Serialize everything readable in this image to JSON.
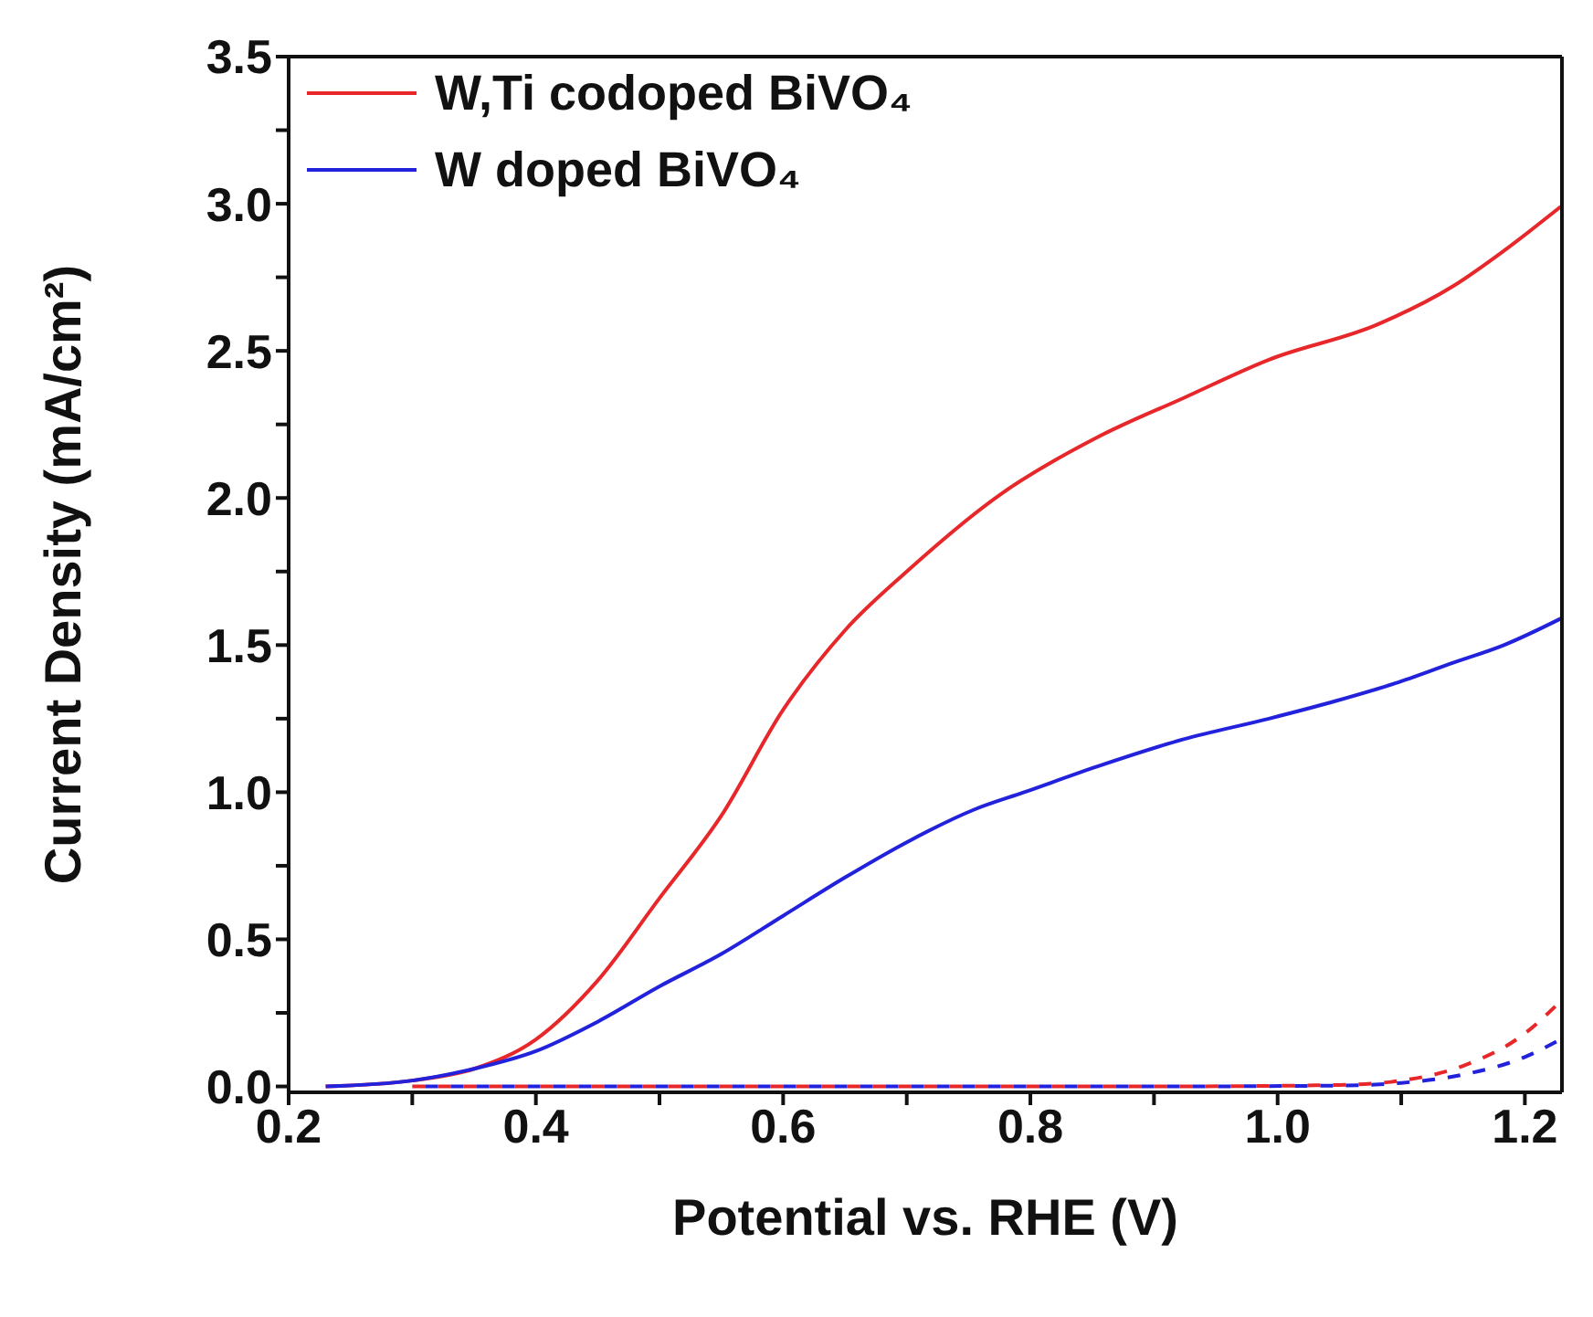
{
  "chart_data": {
    "type": "line",
    "xlabel": "Potential vs. RHE (V)",
    "ylabel": "Current Density (mA/cm²)",
    "xlim": [
      0.2,
      1.23
    ],
    "xticks": [
      0.2,
      {
        "value": 0.3,
        "label": null
      },
      0.4,
      {
        "value": 0.5,
        "label": null
      },
      0.6,
      {
        "value": 0.7,
        "label": null
      },
      0.8,
      {
        "value": 0.9,
        "label": null
      },
      {
        "value": 1.0,
        "label": "1.0"
      },
      {
        "value": 1.1,
        "label": null
      },
      1.2
    ],
    "ylim": [
      -0.02,
      3.5
    ],
    "yticks": [
      {
        "value": 0,
        "label": "0.0"
      },
      {
        "value": 0.25,
        "label": null
      },
      0.5,
      {
        "value": 0.75,
        "label": null
      },
      {
        "value": 1,
        "label": "1.0"
      },
      {
        "value": 1.25,
        "label": null
      },
      1.5,
      {
        "value": 1.75,
        "label": null
      },
      {
        "value": 2,
        "label": "2.0"
      },
      {
        "value": 2.25,
        "label": null
      },
      2.5,
      {
        "value": 2.75,
        "label": null
      },
      {
        "value": 3,
        "label": "3.0"
      },
      {
        "value": 3.25,
        "label": null
      },
      3.5
    ],
    "grid": false,
    "legend": "top left",
    "marker": "none",
    "series": [
      {
        "name": "W,Ti codoped BiVO₄",
        "color": "#e8272a",
        "line_style": "solid",
        "x": [
          0.23,
          0.3,
          0.35,
          0.4,
          0.45,
          0.5,
          0.55,
          0.6,
          0.65,
          0.7,
          0.775,
          0.856,
          0.924,
          0.993,
          1.081,
          1.142,
          1.183,
          1.229
        ],
        "values": [
          0,
          0.02,
          0.06,
          0.16,
          0.36,
          0.64,
          0.92,
          1.28,
          1.55,
          1.75,
          2.01,
          2.21,
          2.34,
          2.47,
          2.59,
          2.72,
          2.84,
          2.99
        ]
      },
      {
        "name": "W doped BiVO₄",
        "color": "#2222dd",
        "line_style": "solid",
        "x": [
          0.23,
          0.3,
          0.35,
          0.4,
          0.45,
          0.5,
          0.55,
          0.6,
          0.65,
          0.7,
          0.754,
          0.795,
          0.856,
          0.924,
          0.993,
          1.047,
          1.095,
          1.142,
          1.183,
          1.229
        ],
        "values": [
          0,
          0.02,
          0.06,
          0.12,
          0.22,
          0.34,
          0.45,
          0.58,
          0.71,
          0.83,
          0.94,
          1.0,
          1.09,
          1.18,
          1.25,
          1.31,
          1.37,
          1.44,
          1.5,
          1.59
        ]
      },
      {
        "color": "#e8272a",
        "line_style": "dashed",
        "x": [
          0.3,
          0.6,
          0.9,
          1.05,
          1.1,
          1.15,
          1.2,
          1.229
        ],
        "values": [
          0,
          0,
          0,
          0.005,
          0.02,
          0.07,
          0.18,
          0.29
        ]
      },
      {
        "color": "#2222dd",
        "line_style": "dashed",
        "x": [
          0.3,
          0.6,
          0.9,
          1.05,
          1.1,
          1.15,
          1.2,
          1.229
        ],
        "values": [
          0,
          0,
          0,
          0.003,
          0.012,
          0.04,
          0.1,
          0.16
        ]
      }
    ]
  }
}
